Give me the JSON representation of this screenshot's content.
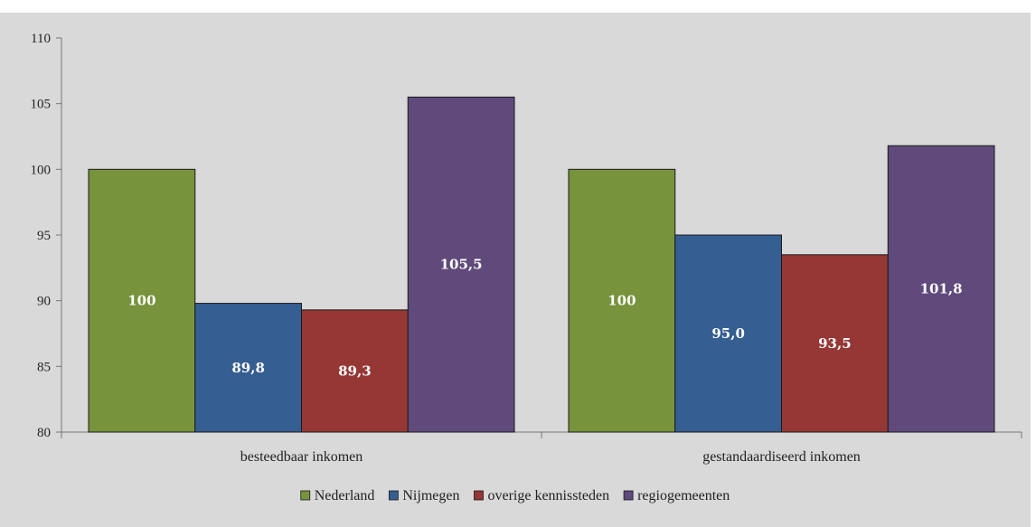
{
  "chart_data": {
    "type": "bar",
    "categories": [
      "besteedbaar inkomen",
      "gestandaardiseerd inkomen"
    ],
    "series": [
      {
        "name": "Nederland",
        "values": [
          100,
          100
        ],
        "labels": [
          "100",
          "100"
        ],
        "color": "#77933c"
      },
      {
        "name": "Nijmegen",
        "values": [
          89.8,
          95.0
        ],
        "labels": [
          "89,8",
          "95,0"
        ],
        "color": "#355e91"
      },
      {
        "name": "overige kennissteden",
        "values": [
          89.3,
          93.5
        ],
        "labels": [
          "89,3",
          "93,5"
        ],
        "color": "#953735"
      },
      {
        "name": "regiogemeenten",
        "values": [
          105.5,
          101.8
        ],
        "labels": [
          "105,5",
          "101,8"
        ],
        "color": "#604a7b"
      }
    ],
    "ylim": [
      80,
      110
    ],
    "yticks": [
      "80",
      "85",
      "90",
      "95",
      "100",
      "105",
      "110"
    ],
    "grid": false,
    "legend": "bottom",
    "background": "#d9d9d9"
  }
}
